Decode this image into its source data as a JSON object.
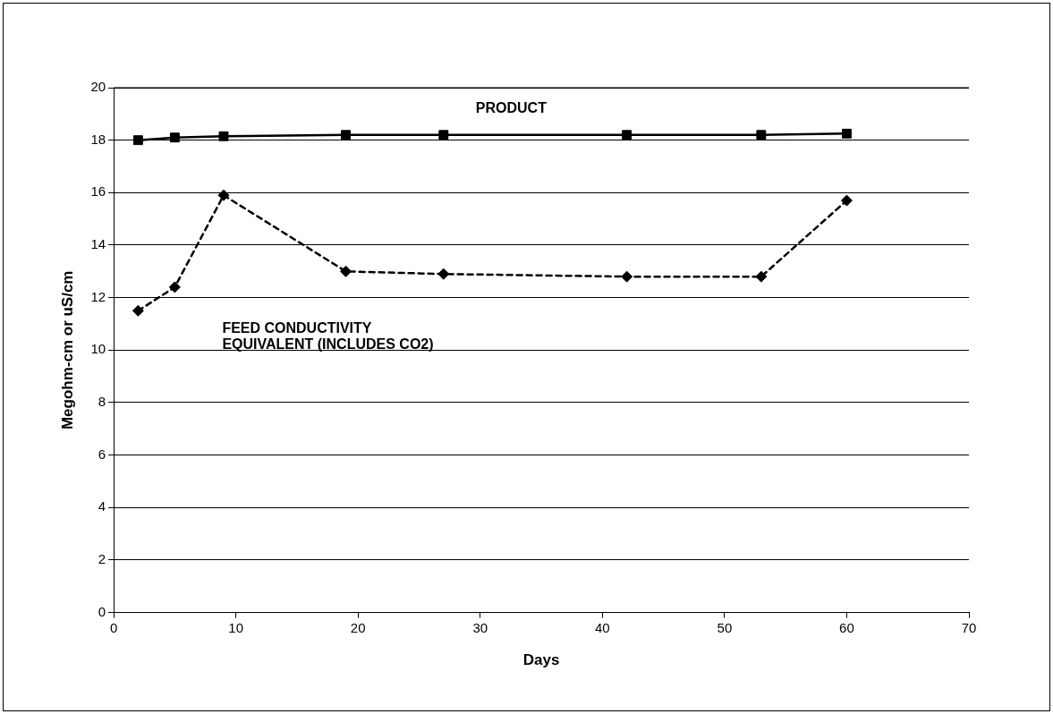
{
  "chart_data": {
    "type": "line",
    "xlabel": "Days",
    "ylabel": "Megohm-cm or uS/cm",
    "x": [
      2,
      5,
      9,
      19,
      27,
      42,
      53,
      60
    ],
    "series": [
      {
        "name": "PRODUCT",
        "color": "#000000",
        "marker": "square",
        "line_style": "solid",
        "values": [
          18.0,
          18.1,
          18.15,
          18.2,
          18.2,
          18.2,
          18.2,
          18.25
        ]
      },
      {
        "name": "FEED CONDUCTIVITY EQUIVALENT (INCLUDES CO2)",
        "color": "#000000",
        "marker": "diamond",
        "line_style": "dashed",
        "values": [
          11.5,
          12.4,
          15.9,
          13.0,
          12.9,
          12.8,
          12.8,
          15.7
        ]
      }
    ],
    "xlim": [
      0,
      70
    ],
    "xticks": [
      0,
      10,
      20,
      30,
      40,
      50,
      60,
      70
    ],
    "ylim": [
      0,
      20
    ],
    "yticks": [
      0,
      2,
      4,
      6,
      8,
      10,
      12,
      14,
      16,
      18,
      20
    ],
    "grid": "y",
    "legend": false
  }
}
